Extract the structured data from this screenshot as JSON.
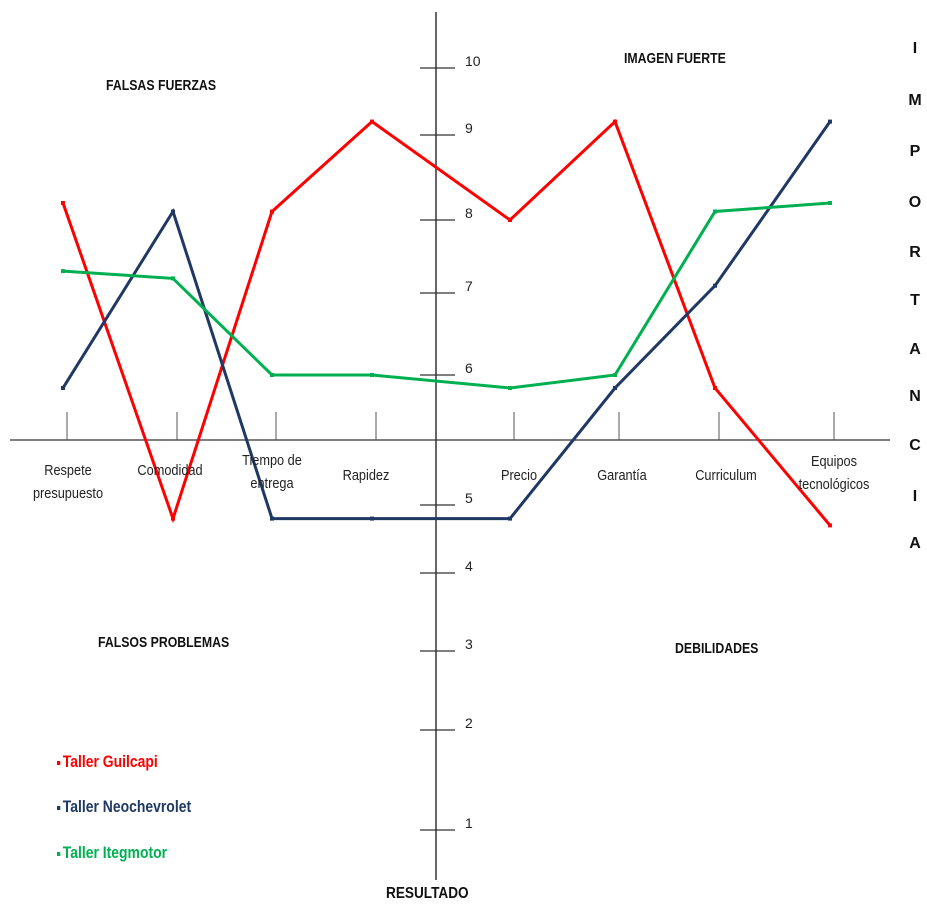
{
  "chart_data": {
    "type": "line",
    "categories": [
      "Respete presupuesto",
      "Comodidad",
      "Tiempo de entrega",
      "Rapidez",
      "Precio",
      "Garantía",
      "Curriculum",
      "Equipos tecnológicos"
    ],
    "category_lines": [
      [
        "Respete",
        "presupuesto"
      ],
      [
        "Comodidad"
      ],
      [
        "Tiempo de",
        "entrega"
      ],
      [
        "Rapidez"
      ],
      [
        "Precio"
      ],
      [
        "Garantía"
      ],
      [
        "Curriculum"
      ],
      [
        "Equipos",
        "tecnológicos"
      ]
    ],
    "y_ticks": [
      1,
      2,
      3,
      4,
      5,
      6,
      7,
      8,
      9,
      10
    ],
    "ylim": [
      0,
      10
    ],
    "xlabel": "RESULTADO",
    "ylabel": "IMPORTANCIA",
    "series": [
      {
        "name": "Taller Guilcapi",
        "color": "#ff0000",
        "values": [
          8.2,
          4.8,
          8.1,
          9.2,
          8.0,
          9.2,
          5.9,
          4.7
        ]
      },
      {
        "name": "Taller Neochevrolet",
        "color": "#1f3864",
        "values": [
          5.9,
          8.1,
          4.8,
          4.8,
          4.8,
          5.9,
          7.1,
          9.2
        ]
      },
      {
        "name": "Taller Itegmotor",
        "color": "#00b050",
        "values": [
          7.3,
          7.2,
          6.0,
          6.0,
          5.9,
          6.0,
          8.1,
          8.2
        ]
      }
    ]
  },
  "quadrants": {
    "top_left": "FALSAS FUERZAS",
    "top_right": "IMAGEN FUERTE",
    "bottom_left": "FALSOS PROBLEMAS",
    "bottom_right": "DEBILIDADES"
  },
  "side_title_letters": [
    "I",
    "M",
    "P",
    "O",
    "R",
    "T",
    "A",
    "N",
    "C",
    "I",
    "A"
  ],
  "bottom_title": "RESULTADO",
  "legend": [
    {
      "label": "Taller Guilcapi",
      "color": "#ff0000"
    },
    {
      "label": "Taller Neochevrolet",
      "color": "#1f3864"
    },
    {
      "label": "Taller Itegmotor",
      "color": "#00b050"
    }
  ]
}
